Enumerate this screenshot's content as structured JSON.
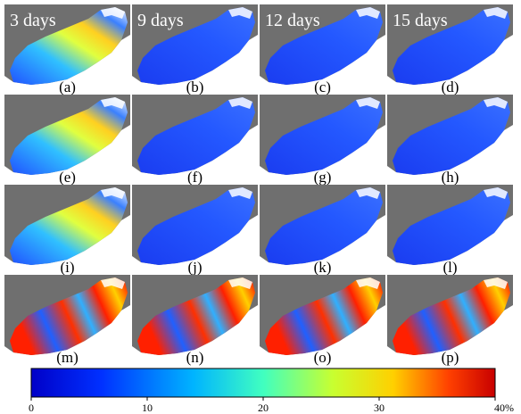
{
  "columns": [
    "3 days",
    "9 days",
    "12 days",
    "15 days"
  ],
  "panels": [
    "(a)",
    "(b)",
    "(c)",
    "(d)",
    "(e)",
    "(f)",
    "(g)",
    "(h)",
    "(i)",
    "(j)",
    "(k)",
    "(l)",
    "(m)",
    "(n)",
    "(o)",
    "(p)"
  ],
  "colorbar": {
    "range": [
      0,
      40
    ],
    "ticks": [
      0,
      10,
      20,
      30,
      {
        "value": 40,
        "label": "40%"
      }
    ]
  }
}
